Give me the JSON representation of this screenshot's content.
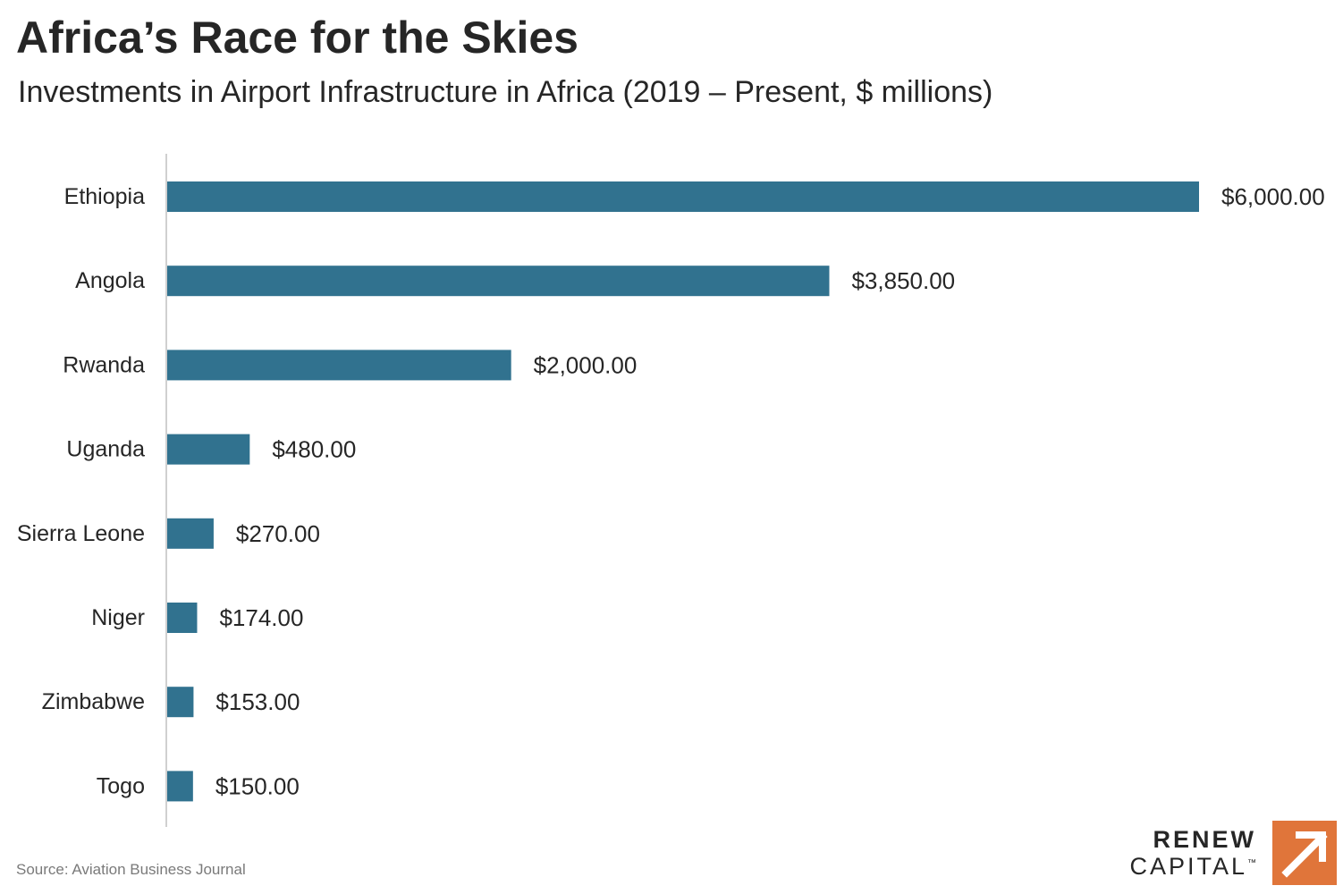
{
  "header": {
    "title": "Africa’s Race for the Skies",
    "subtitle": "Investments in Airport Infrastructure in Africa (2019 – Present, $ millions)"
  },
  "chart_data": {
    "type": "bar",
    "orientation": "horizontal",
    "categories": [
      "Ethiopia",
      "Angola",
      "Rwanda",
      "Uganda",
      "Sierra Leone",
      "Niger",
      "Zimbabwe",
      "Togo"
    ],
    "values": [
      6000,
      3850,
      2000,
      480,
      270,
      174,
      153,
      150
    ],
    "value_labels": [
      "$6,000.00",
      "$3,850.00",
      "$2,000.00",
      "$480.00",
      "$270.00",
      "$174.00",
      "$153.00",
      "$150.00"
    ],
    "title": "Africa’s Race for the Skies",
    "subtitle": "Investments in Airport Infrastructure in Africa (2019 – Present, $ millions)",
    "xlabel": "",
    "ylabel": "",
    "xlim": [
      0,
      6000
    ],
    "grid": false,
    "legend": "none",
    "bar_color": "#31728f",
    "axis_color": "#d0d0d0"
  },
  "footer": {
    "source": "Source: Aviation Business Journal"
  },
  "logo": {
    "line1": "RENEW",
    "line2": "CAPITAL",
    "trademark": "™",
    "mark_icon": "up-right-arrow-icon",
    "mark_color": "#e0753a"
  }
}
